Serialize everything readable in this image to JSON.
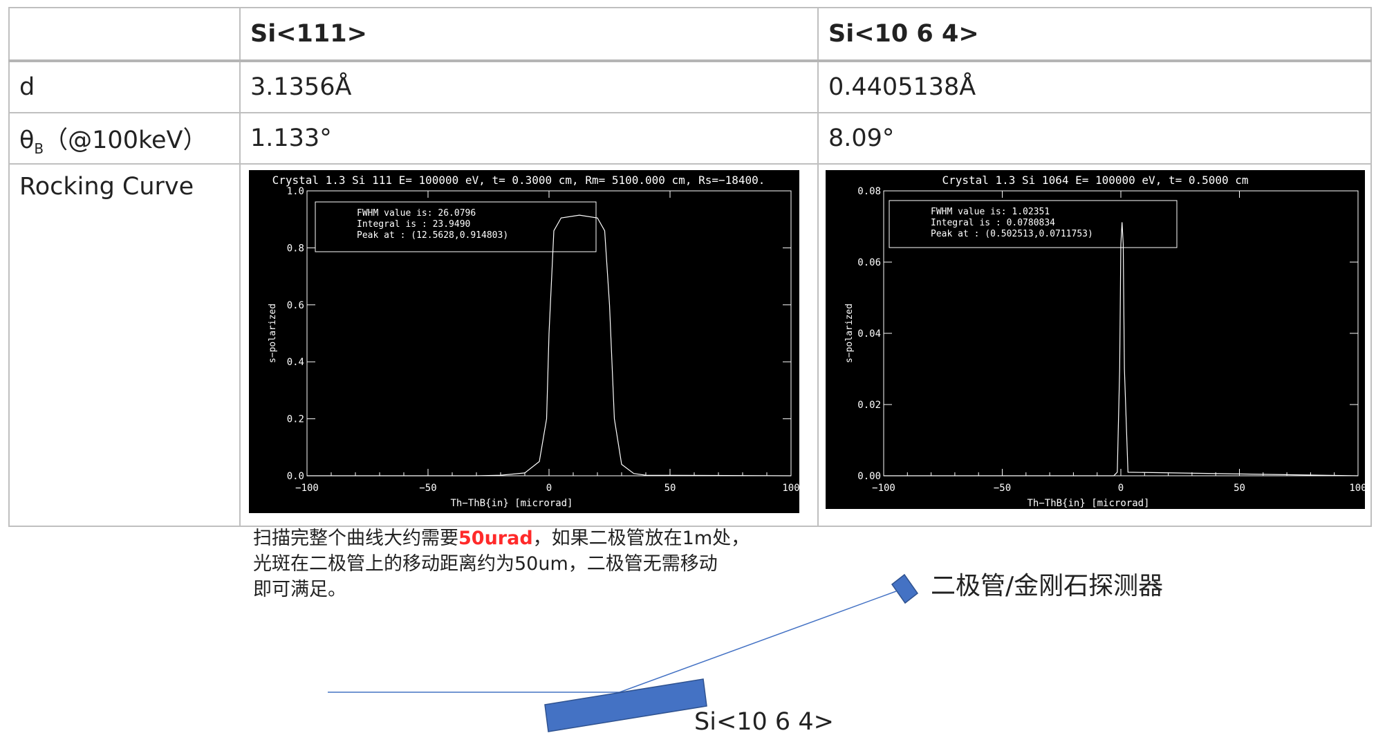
{
  "table": {
    "header": [
      "",
      "Si<111>",
      "Si<10 6 4>"
    ],
    "rows": [
      {
        "label": "d",
        "values": [
          "3.1356Å",
          "0.4405138Å"
        ]
      },
      {
        "label_main": "θ",
        "label_sub": "B",
        "label_rest": "（@100keV）",
        "values": [
          "1.133°",
          "8.09°"
        ]
      }
    ],
    "rocking_label": "Rocking Curve"
  },
  "plots": [
    {
      "title": "Crystal 1.3 Si 111 E= 100000 eV, t=  0.3000 cm, Rm= 5100.000 cm, Rs=−18400.",
      "ylabel": "s−polarized",
      "xlabel": "Th−ThB{in} [microrad]",
      "xticks": [
        "−100",
        "−50",
        "0",
        "50",
        "100"
      ],
      "yticks": [
        "0.0",
        "0.2",
        "0.4",
        "0.6",
        "0.8",
        "1.0"
      ],
      "legend": [
        "FWHM value is: 26.0796",
        "Integral is   : 23.9490",
        "Peak at   : (12.5628,0.914803)"
      ]
    },
    {
      "title": "Crystal 1.3 Si 1064 E= 100000 eV, t=  0.5000 cm",
      "ylabel": "s−polarized",
      "xlabel": "Th−ThB{in} [microrad]",
      "xticks": [
        "−100",
        "−50",
        "0",
        "50",
        "100"
      ],
      "yticks": [
        "0.00",
        "0.02",
        "0.04",
        "0.06",
        "0.08"
      ],
      "legend": [
        "FWHM value is: 1.02351",
        "Integral is   : 0.0780834",
        "Peak at   : (0.502513,0.0711753)"
      ]
    }
  ],
  "chart_data": [
    {
      "type": "line",
      "title": "Crystal 1.3 Si 111 E= 100000 eV, t=  0.3000 cm, Rm= 5100.000 cm, Rs=−18400.",
      "xlabel": "Th−ThB{in} [microrad]",
      "ylabel": "s−polarized",
      "xlim": [
        -100,
        100
      ],
      "ylim": [
        0,
        1.0
      ],
      "series": [
        {
          "x": [
            -100,
            -30,
            -20,
            -10,
            -4,
            -1,
            0,
            2,
            5,
            12.5628,
            20,
            23,
            25,
            27,
            30,
            35,
            40,
            100
          ],
          "y": [
            0,
            0,
            0.002,
            0.01,
            0.05,
            0.2,
            0.5,
            0.86,
            0.905,
            0.914803,
            0.905,
            0.86,
            0.6,
            0.2,
            0.04,
            0.008,
            0.002,
            0
          ]
        }
      ]
    },
    {
      "type": "line",
      "title": "Crystal 1.3 Si 1064 E= 100000 eV, t=  0.5000 cm",
      "xlabel": "Th−ThB{in} [microrad]",
      "ylabel": "s−polarized",
      "xlim": [
        -100,
        100
      ],
      "ylim": [
        0,
        0.08
      ],
      "series": [
        {
          "x": [
            -100,
            -3,
            -1.5,
            -0.5,
            0,
            0.502513,
            1,
            1.5,
            3,
            100
          ],
          "y": [
            0,
            0,
            0.001,
            0.03,
            0.065,
            0.0711753,
            0.065,
            0.03,
            0.001,
            0
          ]
        }
      ]
    }
  ],
  "note": {
    "part1": "扫描完整个曲线大约需要",
    "highlight": "50urad",
    "part2": "，如果二极管放在1m处，",
    "line2": "光斑在二极管上的移动距离约为50um，二极管无需移动",
    "line3": "即可满足。"
  },
  "diagram": {
    "detector_label": "二极管/金刚石探测器",
    "crystal_label": "Si<10 6 4>",
    "shape_color": "#4472c4",
    "beam_color": "#4472c4"
  }
}
